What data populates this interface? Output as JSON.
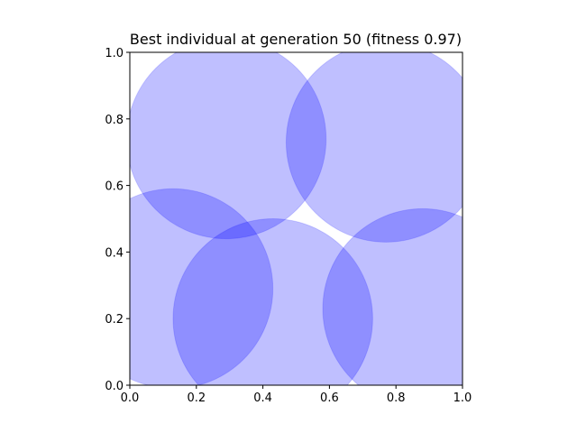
{
  "chart_data": {
    "type": "scatter",
    "title": "Best individual at generation 50 (fitness 0.97)",
    "xlabel": "",
    "ylabel": "",
    "xlim": [
      0,
      1
    ],
    "ylim": [
      0,
      1
    ],
    "x_ticks": [
      "0.0",
      "0.2",
      "0.4",
      "0.6",
      "0.8",
      "1.0"
    ],
    "y_ticks": [
      "0.0",
      "0.2",
      "0.4",
      "0.6",
      "0.8",
      "1.0"
    ],
    "grid": false,
    "aspect": "equal",
    "circles": [
      {
        "cx": 0.29,
        "cy": 0.74,
        "r": 0.3
      },
      {
        "cx": 0.77,
        "cy": 0.73,
        "r": 0.3
      },
      {
        "cx": 0.13,
        "cy": 0.29,
        "r": 0.3
      },
      {
        "cx": 0.43,
        "cy": 0.2,
        "r": 0.3
      },
      {
        "cx": 0.88,
        "cy": 0.23,
        "r": 0.3
      }
    ],
    "circle_color": "#0000ff",
    "circle_opacity": 0.25
  }
}
